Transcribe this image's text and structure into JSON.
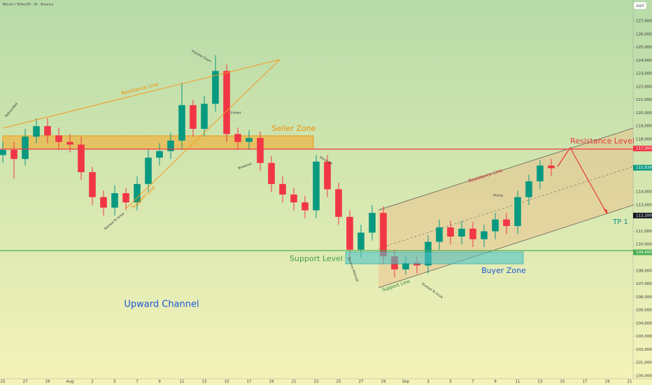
{
  "header": {
    "title": "Bitcoin / TetherUS · 3h · Binance",
    "currency": "USDT"
  },
  "chart_data": {
    "type": "candlestick",
    "categories": [
      "25",
      null,
      "27",
      null,
      "29",
      null,
      "Aug",
      null,
      "2",
      null,
      "5",
      null,
      "7",
      null,
      "9",
      null,
      "11",
      null,
      "13",
      null,
      "15",
      null,
      "17",
      null,
      "19",
      null,
      "21",
      null,
      "23",
      null,
      "25",
      null,
      "27",
      null,
      "29",
      null,
      "Sep",
      null,
      "3",
      null,
      "5",
      null,
      "7",
      null,
      "9",
      null,
      "11",
      null,
      "13",
      null,
      "15",
      null,
      "17",
      null,
      "19",
      null,
      "21"
    ],
    "open": [
      116800,
      117200,
      116500,
      118200,
      119000,
      118300,
      117800,
      117600,
      115500,
      113600,
      112800,
      113900,
      113200,
      114600,
      116600,
      117100,
      117900,
      120600,
      118800,
      120700,
      123200,
      118400,
      117800,
      118100,
      116200,
      114600,
      113800,
      113200,
      112600,
      116300,
      114200,
      112100,
      109600,
      110900,
      112400,
      109100,
      108100,
      108600,
      108400,
      110200,
      111300,
      110600,
      111200,
      110400,
      111000,
      111900,
      111400,
      113600,
      114800,
      116000,
      null,
      null,
      null,
      null,
      null,
      null,
      null
    ],
    "high": [
      117800,
      117800,
      118800,
      119600,
      119600,
      118900,
      118400,
      118200,
      115900,
      114100,
      114500,
      114300,
      115200,
      117200,
      117700,
      118500,
      122300,
      121000,
      121300,
      124400,
      123700,
      118900,
      118700,
      118600,
      116700,
      115200,
      114300,
      113700,
      116800,
      116800,
      114700,
      112600,
      111500,
      113000,
      112900,
      109600,
      109200,
      109100,
      110700,
      111900,
      111800,
      111800,
      111700,
      111500,
      112400,
      112400,
      114100,
      115300,
      116400,
      116500,
      null,
      null,
      null,
      null,
      null,
      null,
      null
    ],
    "low": [
      116200,
      115000,
      116000,
      117700,
      117700,
      117200,
      117000,
      114900,
      113000,
      112200,
      112200,
      112600,
      112600,
      114000,
      116000,
      116500,
      117300,
      118200,
      118200,
      120100,
      117800,
      117200,
      117200,
      115600,
      114000,
      113200,
      112600,
      112000,
      112000,
      113600,
      111500,
      108900,
      109000,
      110300,
      108500,
      107500,
      107700,
      107800,
      107800,
      109600,
      110000,
      110000,
      109800,
      109800,
      110400,
      110800,
      110800,
      113000,
      114200,
      115200,
      null,
      null,
      null,
      null,
      null,
      null,
      null
    ],
    "close": [
      117200,
      116500,
      118200,
      119000,
      118300,
      117800,
      117600,
      115500,
      113600,
      112800,
      113900,
      113200,
      114600,
      116600,
      117100,
      117900,
      120600,
      118800,
      120700,
      123200,
      118400,
      117800,
      118100,
      116200,
      114600,
      113800,
      113200,
      112600,
      116300,
      114200,
      112100,
      109600,
      110900,
      112400,
      109100,
      108100,
      108600,
      108400,
      110200,
      111300,
      110600,
      111200,
      110400,
      111000,
      111900,
      111400,
      113600,
      114800,
      116000,
      115800,
      null,
      null,
      null,
      null,
      null,
      null,
      null
    ],
    "up_color": "#089981",
    "down_color": "#f23645",
    "ylim": [
      100000,
      127000
    ],
    "yticks": [
      {
        "value": 127000,
        "label": "127,000.00"
      },
      {
        "value": 126000,
        "label": "126,000.00"
      },
      {
        "value": 125000,
        "label": "125,000.00"
      },
      {
        "value": 124000,
        "label": "124,000.00"
      },
      {
        "value": 123000,
        "label": "123,000.00"
      },
      {
        "value": 122000,
        "label": "122,000.00"
      },
      {
        "value": 121000,
        "label": "121,000.00"
      },
      {
        "value": 120000,
        "label": "120,000.00"
      },
      {
        "value": 119000,
        "label": "119,000.00"
      },
      {
        "value": 118000,
        "label": "118,000.00"
      },
      {
        "value": 114000,
        "label": "114,000.00"
      },
      {
        "value": 113000,
        "label": "113,000.00"
      },
      {
        "value": 111000,
        "label": "111,000.00"
      },
      {
        "value": 110000,
        "label": "110,000.00"
      },
      {
        "value": 108000,
        "label": "108,000.00"
      },
      {
        "value": 107000,
        "label": "107,000.00"
      },
      {
        "value": 106000,
        "label": "106,000.00"
      },
      {
        "value": 105000,
        "label": "105,000.00"
      },
      {
        "value": 104000,
        "label": "104,000.00"
      },
      {
        "value": 103000,
        "label": "103,000.00"
      },
      {
        "value": 102000,
        "label": "102,000.00"
      },
      {
        "value": 101000,
        "label": "101,000.00"
      },
      {
        "value": 100000,
        "label": "100,000.00"
      }
    ],
    "price_labels": [
      {
        "value": 117300,
        "label": "117,300.00",
        "color": "#f23645"
      },
      {
        "value": 115838,
        "label": "115,838.00",
        "color": "#089981"
      },
      {
        "value": 112200,
        "label": "112,200.00",
        "color": "#131722"
      },
      {
        "value": 109400,
        "label": "109,400.00",
        "color": "#4caf50"
      }
    ],
    "annotations": [
      "Resistance Line",
      "Support Line",
      "Seller Zone",
      "Resistance Level",
      "TP 1",
      "Support Level",
      "Buyer Zone",
      "Upward Channel",
      "Resistance Line",
      "Support Line",
      "Rebounded",
      "Impulse Down",
      "Exited",
      "Breakout",
      "Bounced",
      "Started To Grow",
      "Rising",
      "Bounce Attempt",
      "Started To Grow"
    ]
  }
}
